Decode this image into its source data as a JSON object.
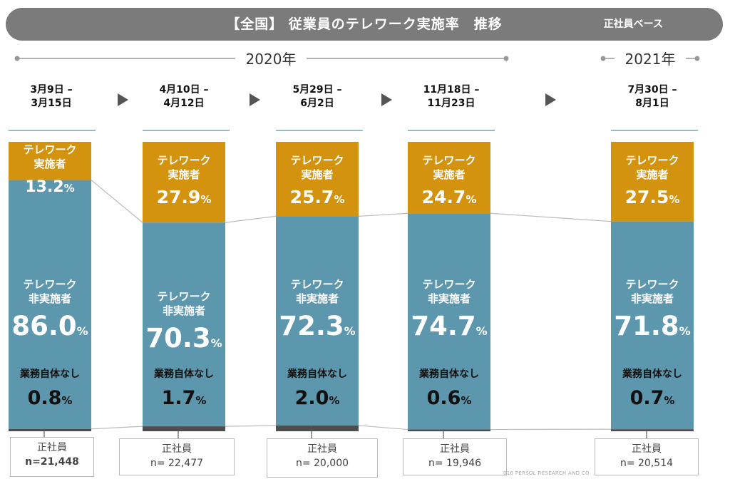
{
  "header": {
    "title": "【全国】 従業員のテレワーク実施率　推移",
    "basis": "正社員ベース"
  },
  "timeline": {
    "year_2020": "2020年",
    "year_2021": "2021年"
  },
  "colors": {
    "teleworker": "#d4930e",
    "non_teleworker": "#5d97ad",
    "no_work": "#4d4d4d",
    "title_bar": "#7b7b7b"
  },
  "chart_data": {
    "type": "bar",
    "stacked": true,
    "title": "【全国】 従業員のテレワーク実施率　推移",
    "categories": [
      "3月9日 – 3月15日",
      "4月10日 – 4月12日",
      "5月29日 – 6月2日",
      "11月18日 – 11月23日",
      "7月30日 – 8月1日"
    ],
    "category_lines": [
      [
        "3月9日 –",
        "3月15日"
      ],
      [
        "4月10日 –",
        "4月12日"
      ],
      [
        "5月29日 –",
        "6月2日"
      ],
      [
        "11月18日 –",
        "11月23日"
      ],
      [
        "7月30日 –",
        "8月1日"
      ]
    ],
    "series": [
      {
        "name": "テレワーク実施者",
        "label_lines": [
          "テレワーク",
          "実施者"
        ],
        "values": [
          13.2,
          27.9,
          25.7,
          24.7,
          27.5
        ],
        "value_labels": [
          "13.2",
          "27.9",
          "25.7",
          "24.7",
          "27.5"
        ],
        "color": "#d4930e"
      },
      {
        "name": "テレワーク非実施者",
        "label_lines": [
          "テレワーク",
          "非実施者"
        ],
        "values": [
          86.0,
          70.3,
          72.3,
          74.7,
          71.8
        ],
        "value_labels": [
          "86.0",
          "70.3",
          "72.3",
          "74.7",
          "71.8"
        ],
        "color": "#5d97ad"
      },
      {
        "name": "業務自体なし",
        "label_lines": [
          "業務自体なし"
        ],
        "values": [
          0.8,
          1.7,
          2.0,
          0.6,
          0.7
        ],
        "value_labels": [
          "0.8",
          "1.7",
          "2.0",
          "0.6",
          "0.7"
        ],
        "color": "#4d4d4d"
      }
    ],
    "unit": "%",
    "base_label": "正社員",
    "sample_sizes": [
      "n=21,448",
      "n= 22,477",
      "n= 20,000",
      "n= 19,946",
      "n= 20,514"
    ],
    "ylim": [
      0,
      100
    ]
  },
  "footer": {
    "copyright": "016  PERSOL  RESEARCH AND CO"
  }
}
